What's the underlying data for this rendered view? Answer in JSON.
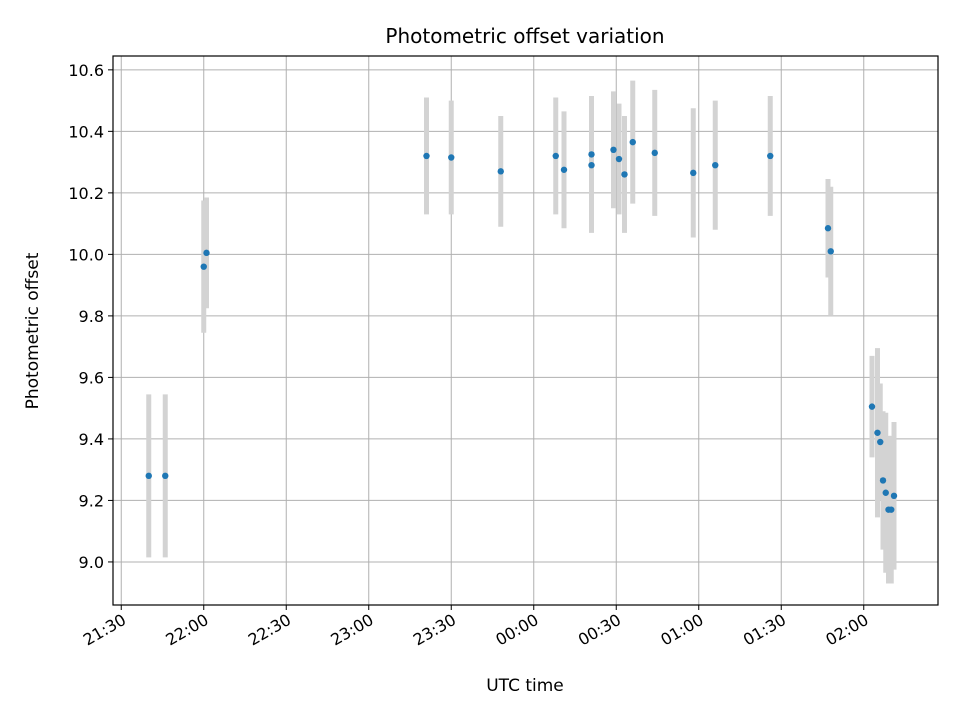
{
  "chart_data": {
    "type": "scatter",
    "title": "Photometric offset variation",
    "xlabel": "UTC time",
    "ylabel": "Photometric offset",
    "x_tick_labels": [
      "21:30",
      "22:00",
      "22:30",
      "23:00",
      "23:30",
      "00:00",
      "00:30",
      "01:00",
      "01:30",
      "02:00"
    ],
    "y_tick_labels": [
      "9.0",
      "9.2",
      "9.4",
      "9.6",
      "9.8",
      "10.0",
      "10.2",
      "10.4",
      "10.6"
    ],
    "ylim": [
      8.86,
      10.645
    ],
    "xlim": [
      "21:27",
      "02:27"
    ],
    "grid": true,
    "marker_color": "#1f77b4",
    "errorbar_color": "#d3d3d3",
    "series": [
      {
        "points": [
          {
            "x": "21:40",
            "y": 9.28,
            "err": 0.265
          },
          {
            "x": "21:46",
            "y": 9.28,
            "err": 0.265
          },
          {
            "x": "22:00",
            "y": 9.96,
            "err": 0.215
          },
          {
            "x": "22:01",
            "y": 10.005,
            "err": 0.18
          },
          {
            "x": "23:21",
            "y": 10.32,
            "err": 0.19
          },
          {
            "x": "23:30",
            "y": 10.315,
            "err": 0.185
          },
          {
            "x": "23:48",
            "y": 10.27,
            "err": 0.18
          },
          {
            "x": "00:08",
            "y": 10.32,
            "err": 0.19
          },
          {
            "x": "00:11",
            "y": 10.275,
            "err": 0.19
          },
          {
            "x": "00:21",
            "y": 10.29,
            "err": 0.22
          },
          {
            "x": "00:21",
            "y": 10.325,
            "err": 0.19
          },
          {
            "x": "00:29",
            "y": 10.34,
            "err": 0.19
          },
          {
            "x": "00:31",
            "y": 10.31,
            "err": 0.18
          },
          {
            "x": "00:33",
            "y": 10.26,
            "err": 0.19
          },
          {
            "x": "00:36",
            "y": 10.365,
            "err": 0.2
          },
          {
            "x": "00:44",
            "y": 10.33,
            "err": 0.205
          },
          {
            "x": "00:58",
            "y": 10.265,
            "err": 0.21
          },
          {
            "x": "01:06",
            "y": 10.29,
            "err": 0.21
          },
          {
            "x": "01:26",
            "y": 10.32,
            "err": 0.195
          },
          {
            "x": "01:47",
            "y": 10.085,
            "err": 0.16
          },
          {
            "x": "01:48",
            "y": 10.01,
            "err": 0.21
          },
          {
            "x": "02:03",
            "y": 9.505,
            "err": 0.165
          },
          {
            "x": "02:05",
            "y": 9.42,
            "err": 0.275
          },
          {
            "x": "02:06",
            "y": 9.39,
            "err": 0.19
          },
          {
            "x": "02:07",
            "y": 9.265,
            "err": 0.225
          },
          {
            "x": "02:08",
            "y": 9.225,
            "err": 0.26
          },
          {
            "x": "02:09",
            "y": 9.17,
            "err": 0.24
          },
          {
            "x": "02:10",
            "y": 9.17,
            "err": 0.24
          },
          {
            "x": "02:11",
            "y": 9.215,
            "err": 0.24
          }
        ]
      }
    ]
  }
}
